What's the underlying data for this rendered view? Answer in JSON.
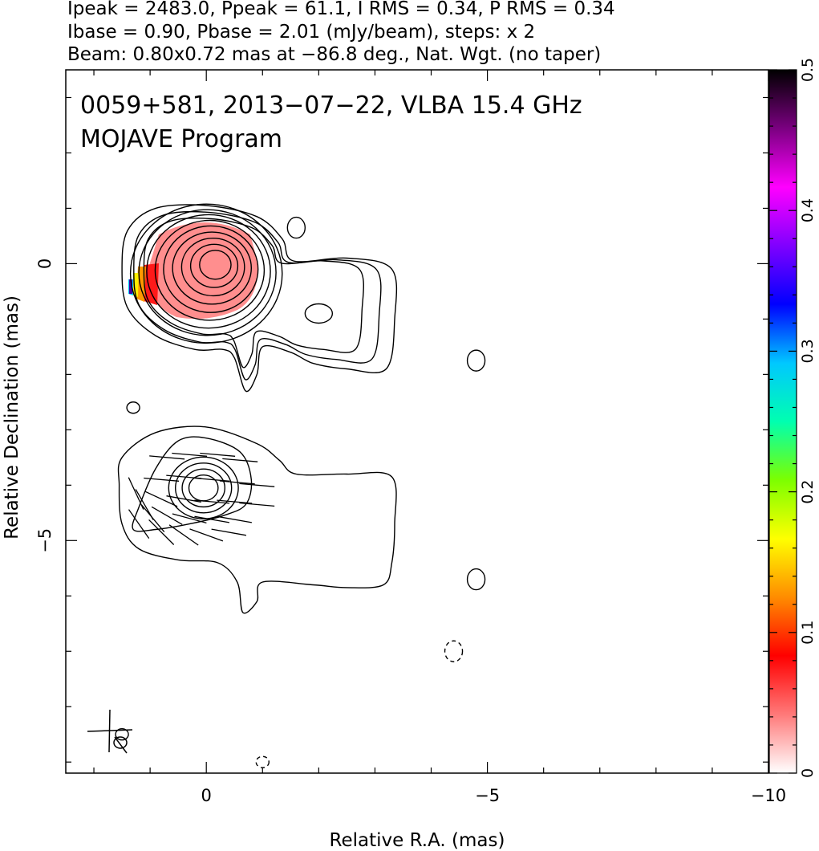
{
  "header": {
    "line1": "Ipeak = 2483.0, Ppeak = 61.1, I RMS = 0.34, P RMS = 0.34",
    "line2": "Ibase = 0.90, Pbase = 2.01 (mJy/beam), steps: x 2",
    "line3": "Beam: 0.80x0.72 mas at −86.8 deg., Nat. Wgt. (no taper)"
  },
  "annotation": {
    "line1": "0059+581, 2013−07−22, VLBA 15.4 GHz",
    "line2": "MOJAVE Program"
  },
  "chart_data": {
    "type": "contour",
    "xlabel": "Relative R.A. (mas)",
    "ylabel": "Relative Declination (mas)",
    "xlim": [
      2.5,
      -10
    ],
    "ylim": [
      -9.2,
      3.5
    ],
    "x_ticks": [
      {
        "value": 0,
        "label": "0"
      },
      {
        "value": -5,
        "label": "−5"
      },
      {
        "value": -10,
        "label": "−10"
      }
    ],
    "y_ticks": [
      {
        "value": 0,
        "label": "0"
      },
      {
        "value": -5,
        "label": "−5"
      }
    ],
    "colorbar": {
      "range": [
        0,
        0.5
      ],
      "ticks": [
        {
          "value": 0,
          "label": "0"
        },
        {
          "value": 0.1,
          "label": "0.1"
        },
        {
          "value": 0.2,
          "label": "0.2"
        },
        {
          "value": 0.3,
          "label": "0.3"
        },
        {
          "value": 0.4,
          "label": "0.4"
        },
        {
          "value": 0.5,
          "label": "0.5"
        }
      ],
      "colors": [
        "#ffffff",
        "#ff7a7a",
        "#ff0000",
        "#ff8c00",
        "#ffff00",
        "#7cff00",
        "#00ffb0",
        "#00c8ff",
        "#0000ff",
        "#8000ff",
        "#ff00ff",
        "#7a0080",
        "#000000"
      ]
    },
    "series": [
      {
        "image": "upper",
        "contour_center": [
          0,
          0
        ],
        "contour_levels": 10,
        "peak_component": [
          0,
          0
        ],
        "secondary_component": [
          -2.0,
          -0.9
        ]
      },
      {
        "image": "lower",
        "contour_center": [
          0,
          -4.0
        ],
        "contour_levels": 6,
        "peak_component": [
          0,
          -4.0
        ]
      }
    ],
    "isolated_contours": [
      [
        -1.6,
        0.65
      ],
      [
        -4.8,
        -1.75
      ],
      [
        -4.8,
        -5.7
      ],
      [
        -4.4,
        -7.0
      ],
      [
        1.3,
        -2.6
      ],
      [
        -1.0,
        -9.0
      ],
      [
        1.5,
        -8.5
      ]
    ],
    "beam": {
      "major_mas": 0.8,
      "minor_mas": 0.72,
      "pa_deg": -86.8
    }
  }
}
